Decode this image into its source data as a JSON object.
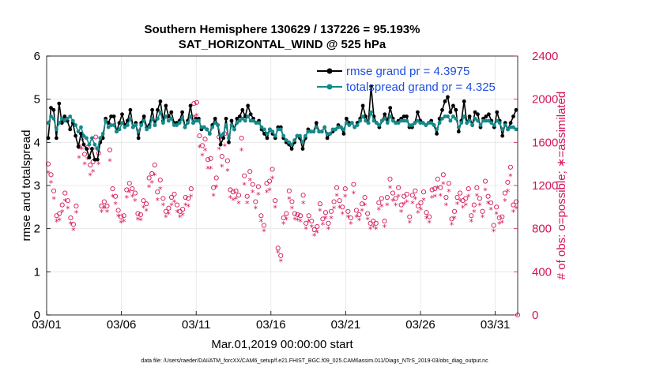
{
  "chart_data": {
    "type": "line",
    "title": "Southern Hemisphere 130629 / 137226 = 95.193%",
    "subtitle": "SAT_HORIZONTAL_WIND @ 525 hPa",
    "xlabel": "Mar.01,2019 00:00:00 start",
    "ylabel": "rmse and totalspread",
    "y2label": "# of obs: o=possible; ∗=assimilated",
    "footnote": "data file: /Users/raeder/DAI/ATM_forcXX/CAM6_setup/f.e21.FHIST_BGC.f09_025.CAM6assim.011/Diags_NTrS_2019-03/obs_diag_output.nc",
    "xlim": [
      1,
      32.5
    ],
    "ylim": [
      0,
      6
    ],
    "y2lim": [
      0,
      2400
    ],
    "x_ticks": [
      {
        "v": 1,
        "label": "03/01"
      },
      {
        "v": 6,
        "label": "03/06"
      },
      {
        "v": 11,
        "label": "03/11"
      },
      {
        "v": 16,
        "label": "03/16"
      },
      {
        "v": 21,
        "label": "03/21"
      },
      {
        "v": 26,
        "label": "03/26"
      },
      {
        "v": 31,
        "label": "03/31"
      }
    ],
    "y_ticks": [
      0,
      1,
      2,
      3,
      4,
      5,
      6
    ],
    "y2_ticks": [
      0,
      400,
      800,
      1200,
      1600,
      2000,
      2400
    ],
    "grid": true,
    "legend": [
      {
        "name": "rmse grand pr = 4.3975",
        "color": "#000000"
      },
      {
        "name": "totalspread grand pr = 4.325",
        "color": "#148a8a"
      }
    ],
    "series": [
      {
        "name": "rmse",
        "color": "#000000",
        "axis": "left",
        "values": [
          4.1,
          4.8,
          4.75,
          4.1,
          4.9,
          4.45,
          4.6,
          4.5,
          4.3,
          4.45,
          4.15,
          3.9,
          4.2,
          3.95,
          3.85,
          3.65,
          3.85,
          3.6,
          3.6,
          4.0,
          4.1,
          4.55,
          4.45,
          4.6,
          4.6,
          4.25,
          4.45,
          4.65,
          4.4,
          4.5,
          4.75,
          4.35,
          4.45,
          4.1,
          4.45,
          4.6,
          4.35,
          4.4,
          4.75,
          4.4,
          4.75,
          4.95,
          4.5,
          4.85,
          4.6,
          4.7,
          4.45,
          4.45,
          4.5,
          4.7,
          4.35,
          4.5,
          4.85,
          4.45,
          4.55,
          4.55,
          4.3,
          4.35,
          4.3,
          4.2,
          4.4,
          4.55,
          4.4,
          3.95,
          4.1,
          4.55,
          4.0,
          4.5,
          4.3,
          4.55,
          4.6,
          4.75,
          4.6,
          4.85,
          4.65,
          4.55,
          4.45,
          4.5,
          4.3,
          4.2,
          4.1,
          4.3,
          4.2,
          4.1,
          4.35,
          4.35,
          4.1,
          4.0,
          3.95,
          3.85,
          4.0,
          4.15,
          4.1,
          3.85,
          4.1,
          4.3,
          4.25,
          4.25,
          4.45,
          4.25,
          4.25,
          4.35,
          4.1,
          4.2,
          4.25,
          4.3,
          4.4,
          4.35,
          4.2,
          4.55,
          4.45,
          4.45,
          4.35,
          4.45,
          4.55,
          4.85,
          4.6,
          4.45,
          5.3,
          4.6,
          4.45,
          4.35,
          4.5,
          4.65,
          4.5,
          4.8,
          4.55,
          4.45,
          4.5,
          4.55,
          4.6,
          4.6,
          4.35,
          4.35,
          4.45,
          4.7,
          4.5,
          4.45,
          4.4,
          4.45,
          4.5,
          4.4,
          4.2,
          4.55,
          4.75,
          4.95,
          5.05,
          4.7,
          4.85,
          4.75,
          4.25,
          4.5,
          4.95,
          4.45,
          4.6,
          4.4,
          4.7,
          4.65,
          4.35,
          4.55,
          4.6,
          4.65,
          4.5,
          4.35,
          4.7,
          4.5,
          4.15,
          4.45,
          4.3,
          4.45,
          4.6,
          4.75
        ]
      },
      {
        "name": "totalspread",
        "color": "#148a8a",
        "axis": "left",
        "values": [
          4.45,
          4.6,
          4.55,
          4.3,
          4.45,
          4.55,
          4.5,
          4.55,
          4.6,
          4.5,
          4.4,
          4.25,
          4.35,
          4.15,
          4.1,
          3.95,
          4.1,
          3.95,
          3.85,
          4.1,
          4.2,
          4.5,
          4.35,
          4.4,
          4.4,
          4.25,
          4.3,
          4.45,
          4.35,
          4.4,
          4.55,
          4.35,
          4.4,
          4.25,
          4.4,
          4.5,
          4.3,
          4.35,
          4.55,
          4.4,
          4.55,
          4.7,
          4.45,
          4.6,
          4.5,
          4.55,
          4.4,
          4.4,
          4.45,
          4.55,
          4.35,
          4.45,
          4.6,
          4.45,
          4.5,
          4.5,
          4.35,
          4.35,
          4.3,
          4.2,
          4.35,
          4.45,
          4.4,
          4.15,
          4.2,
          4.4,
          4.1,
          4.4,
          4.3,
          4.45,
          4.5,
          4.55,
          4.5,
          4.6,
          4.5,
          4.5,
          4.45,
          4.45,
          4.35,
          4.3,
          4.2,
          4.3,
          4.25,
          4.15,
          4.3,
          4.3,
          4.15,
          4.05,
          4.0,
          3.95,
          4.05,
          4.15,
          4.15,
          4.0,
          4.15,
          4.25,
          4.25,
          4.25,
          4.35,
          4.25,
          4.25,
          4.35,
          4.2,
          4.2,
          4.3,
          4.3,
          4.35,
          4.35,
          4.3,
          4.45,
          4.4,
          4.45,
          4.35,
          4.4,
          4.5,
          4.6,
          4.5,
          4.45,
          4.7,
          4.5,
          4.45,
          4.4,
          4.5,
          4.55,
          4.45,
          4.6,
          4.5,
          4.45,
          4.45,
          4.5,
          4.5,
          4.5,
          4.4,
          4.4,
          4.45,
          4.5,
          4.45,
          4.45,
          4.4,
          4.45,
          4.45,
          4.4,
          4.3,
          4.45,
          4.55,
          4.6,
          4.6,
          4.5,
          4.6,
          4.55,
          4.35,
          4.45,
          4.6,
          4.45,
          4.5,
          4.4,
          4.55,
          4.5,
          4.4,
          4.5,
          4.5,
          4.5,
          4.45,
          4.4,
          4.5,
          4.45,
          4.3,
          4.4,
          4.3,
          4.35,
          4.35,
          4.3
        ]
      }
    ],
    "obs_possible": [
      1400,
      1300,
      1150,
      920,
      940,
      1020,
      1130,
      1060,
      900,
      840,
      1010,
      1560,
      1640,
      1490,
      1550,
      1390,
      1420,
      1650,
      1500,
      1010,
      1050,
      1010,
      1530,
      1170,
      1100,
      970,
      910,
      920,
      1160,
      1220,
      1170,
      1130,
      940,
      930,
      1060,
      1030,
      1270,
      1310,
      1390,
      1140,
      1250,
      1080,
      960,
      990,
      1090,
      1120,
      1020,
      960,
      980,
      1090,
      1080,
      1170,
      1960,
      1970,
      1660,
      1570,
      1630,
      1440,
      1450,
      1180,
      1270,
      1650,
      1470,
      1680,
      1430,
      1160,
      1140,
      1150,
      1110,
      1640,
      1290,
      1100,
      1330,
      1210,
      1050,
      1190,
      920,
      830,
      1220,
      1240,
      1350,
      1060,
      620,
      550,
      900,
      940,
      1150,
      1050,
      940,
      930,
      920,
      1110,
      850,
      920,
      870,
      790,
      820,
      1030,
      890,
      950,
      850,
      960,
      1050,
      1180,
      1060,
      1000,
      1170,
      960,
      900,
      1210,
      970,
      930,
      1030,
      1090,
      940,
      850,
      870,
      850,
      1040,
      1080,
      870,
      1090,
      1260,
      1130,
      1080,
      1180,
      1020,
      1100,
      1120,
      910,
      1110,
      1150,
      1010,
      1040,
      1140,
      950,
      910,
      1160,
      1170,
      1260,
      1180,
      1300,
      1090,
      1220,
      890,
      960,
      1090,
      1130,
      1060,
      1080,
      1170,
      920,
      1020,
      1180,
      1080,
      960,
      1240,
      1100,
      1040,
      830,
      1000,
      900,
      910,
      1130,
      1230,
      1370,
      1020,
      1050
    ],
    "obs_assimilated": [
      1320,
      1230,
      1080,
      870,
      880,
      960,
      1060,
      990,
      850,
      790,
      950,
      1460,
      1540,
      1400,
      1450,
      1300,
      1330,
      1540,
      1400,
      960,
      990,
      960,
      1430,
      1100,
      1030,
      920,
      860,
      870,
      1090,
      1140,
      1100,
      1060,
      890,
      880,
      1000,
      970,
      1190,
      1230,
      1300,
      1070,
      1170,
      1020,
      910,
      940,
      1020,
      1050,
      960,
      910,
      930,
      1020,
      1010,
      1100,
      1840,
      1850,
      1560,
      1480,
      1530,
      1360,
      1360,
      1110,
      1190,
      1540,
      1380,
      1570,
      1340,
      1090,
      1070,
      1080,
      1040,
      1530,
      1210,
      1040,
      1250,
      1140,
      990,
      1120,
      870,
      780,
      1140,
      1160,
      1270,
      1000,
      580,
      500,
      850,
      890,
      1080,
      990,
      890,
      880,
      870,
      1040,
      800,
      870,
      820,
      740,
      770,
      970,
      840,
      900,
      800,
      900,
      990,
      1110,
      1000,
      940,
      1100,
      910,
      850,
      1130,
      910,
      880,
      970,
      1020,
      890,
      800,
      820,
      800,
      980,
      1010,
      820,
      1020,
      1180,
      1060,
      1020,
      1100,
      960,
      1030,
      1050,
      860,
      1040,
      1080,
      950,
      980,
      1070,
      900,
      860,
      1090,
      1100,
      1180,
      1110,
      1220,
      1020,
      1150,
      840,
      900,
      1030,
      1060,
      1000,
      1020,
      1100,
      870,
      960,
      1110,
      1020,
      910,
      1160,
      1040,
      980,
      780,
      940,
      850,
      860,
      1060,
      1150,
      1290,
      960,
      990
    ]
  }
}
